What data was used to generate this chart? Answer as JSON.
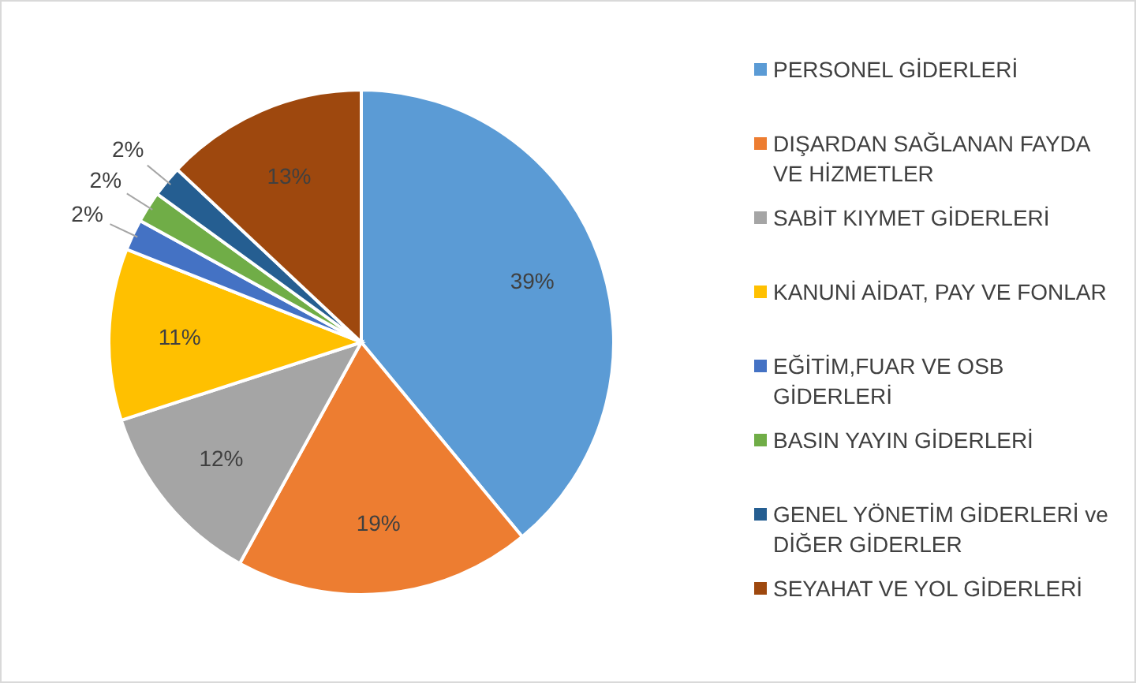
{
  "chart_data": {
    "type": "pie",
    "categories": [
      "PERSONEL GİDERLERİ",
      "DIŞARDAN SAĞLANAN FAYDA VE HİZMETLER",
      "SABİT KIYMET GİDERLERİ",
      "KANUNİ AİDAT, PAY VE FONLAR",
      "EĞİTİM,FUAR VE OSB GİDERLERİ",
      "BASIN YAYIN GİDERLERİ",
      "GENEL YÖNETİM GİDERLERİ ve DİĞER GİDERLER",
      "SEYAHAT VE YOL GİDERLERİ"
    ],
    "values": [
      39,
      19,
      12,
      11,
      2,
      2,
      2,
      13
    ],
    "value_labels": [
      "39%",
      "19%",
      "12%",
      "11%",
      "2%",
      "2%",
      "2%",
      "13%"
    ],
    "colors": [
      "#5b9bd5",
      "#ed7d31",
      "#a5a5a5",
      "#ffc000",
      "#4472c4",
      "#70ad47",
      "#255e91",
      "#9e480e"
    ],
    "legend": "right"
  }
}
